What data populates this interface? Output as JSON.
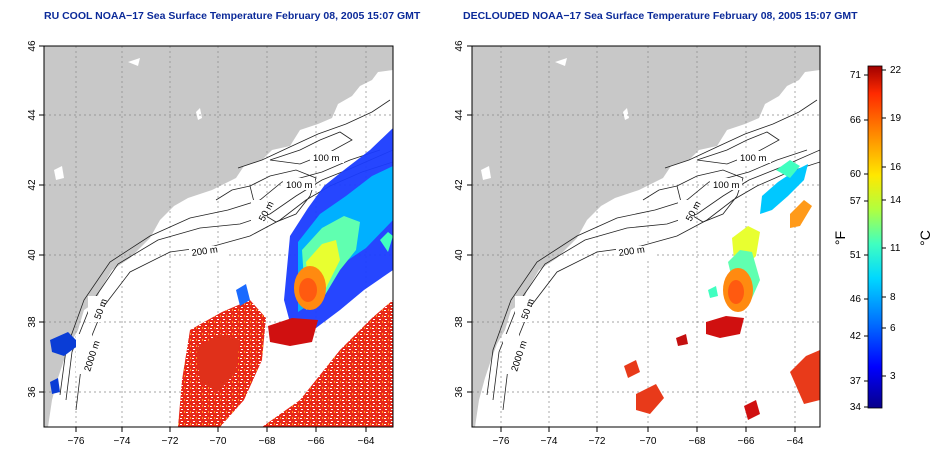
{
  "titles": {
    "left": "RU COOL NOAA−17 Sea Surface Temperature February 08, 2005 15:07 GMT",
    "right": "DECLOUDED NOAA−17 Sea Surface Temperature February 08, 2005 15:07 GMT"
  },
  "axes": {
    "x_ticks": [
      "−76",
      "−74",
      "−72",
      "−70",
      "−68",
      "−66",
      "−64"
    ],
    "y_ticks": [
      "46",
      "44",
      "42",
      "40",
      "38",
      "36"
    ]
  },
  "contour_labels": {
    "left": [
      "100 m",
      "100 m",
      "50 m",
      "200 m",
      "50 m",
      "2000 m"
    ],
    "right": [
      "100 m",
      "100 m",
      "50 m",
      "200 m",
      "50 m",
      "2000 m"
    ]
  },
  "colorbar": {
    "fahrenheit_ticks": [
      "71",
      "66",
      "60",
      "57",
      "51",
      "46",
      "42",
      "37",
      "34"
    ],
    "celsius_ticks": [
      "22",
      "19",
      "16",
      "14",
      "11",
      "8",
      "6",
      "3"
    ],
    "fahrenheit_unit": "°F",
    "celsius_unit": "°C",
    "colors": [
      "#08008a",
      "#0000ff",
      "#0070ff",
      "#00d8ff",
      "#40ffc0",
      "#b0ff40",
      "#ffe800",
      "#ff8a00",
      "#ff2a00",
      "#a00000"
    ]
  }
}
